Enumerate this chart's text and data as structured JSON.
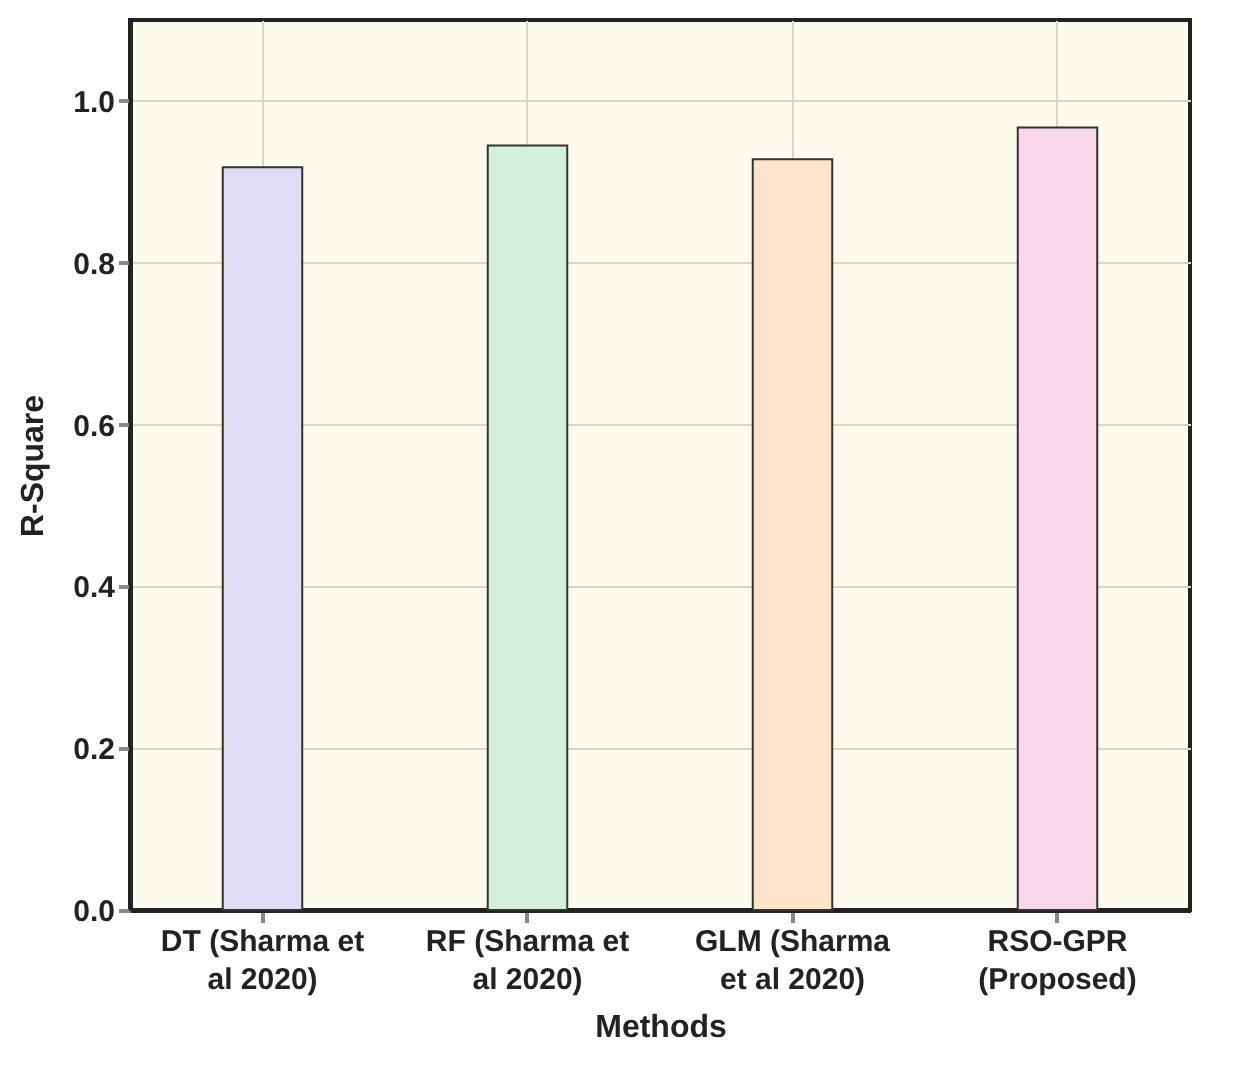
{
  "chart_data": {
    "type": "bar",
    "xlabel": "Methods",
    "ylabel": "R-Square",
    "categories": [
      "DT (Sharma et al 2020)",
      "RF (Sharma et al 2020)",
      "GLM (Sharma et al 2020)",
      "RSO-GPR (Proposed)"
    ],
    "values": [
      0.918,
      0.945,
      0.928,
      0.967
    ],
    "colors": [
      "#e2dbf5",
      "#d5f0da",
      "#fde4cb",
      "#f9d7ea"
    ],
    "ylim": [
      0,
      1.1
    ],
    "yticks": [
      {
        "value": 0,
        "label": "0.0"
      },
      {
        "value": 0.2,
        "label": "0.2"
      },
      {
        "value": 0.4,
        "label": "0.4"
      },
      {
        "value": 0.6,
        "label": "0.6"
      },
      {
        "value": 0.8,
        "label": "0.8"
      },
      {
        "value": 1,
        "label": "1.0"
      }
    ],
    "grid": true
  }
}
